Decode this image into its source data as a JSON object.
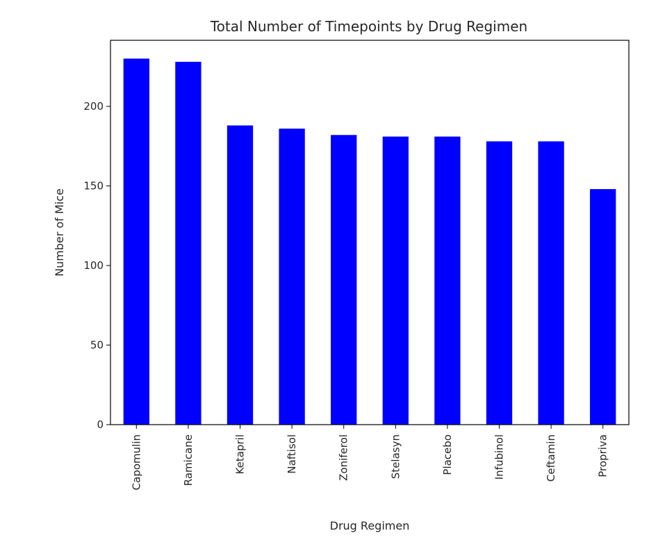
{
  "chart_data": {
    "type": "bar",
    "title": "Total Number of Timepoints by Drug Regimen",
    "xlabel": "Drug Regimen",
    "ylabel": "Number of Mice",
    "categories": [
      "Capomulin",
      "Ramicane",
      "Ketapril",
      "Naftisol",
      "Zoniferol",
      "Stelasyn",
      "Placebo",
      "Infubinol",
      "Ceftamin",
      "Propriva"
    ],
    "values": [
      230,
      228,
      188,
      186,
      182,
      181,
      181,
      178,
      178,
      148
    ],
    "ylim": [
      0,
      241.5
    ],
    "yticks": [
      0,
      50,
      100,
      150,
      200
    ],
    "bar_color": "#0000ff",
    "grid": false,
    "legend": "none"
  }
}
